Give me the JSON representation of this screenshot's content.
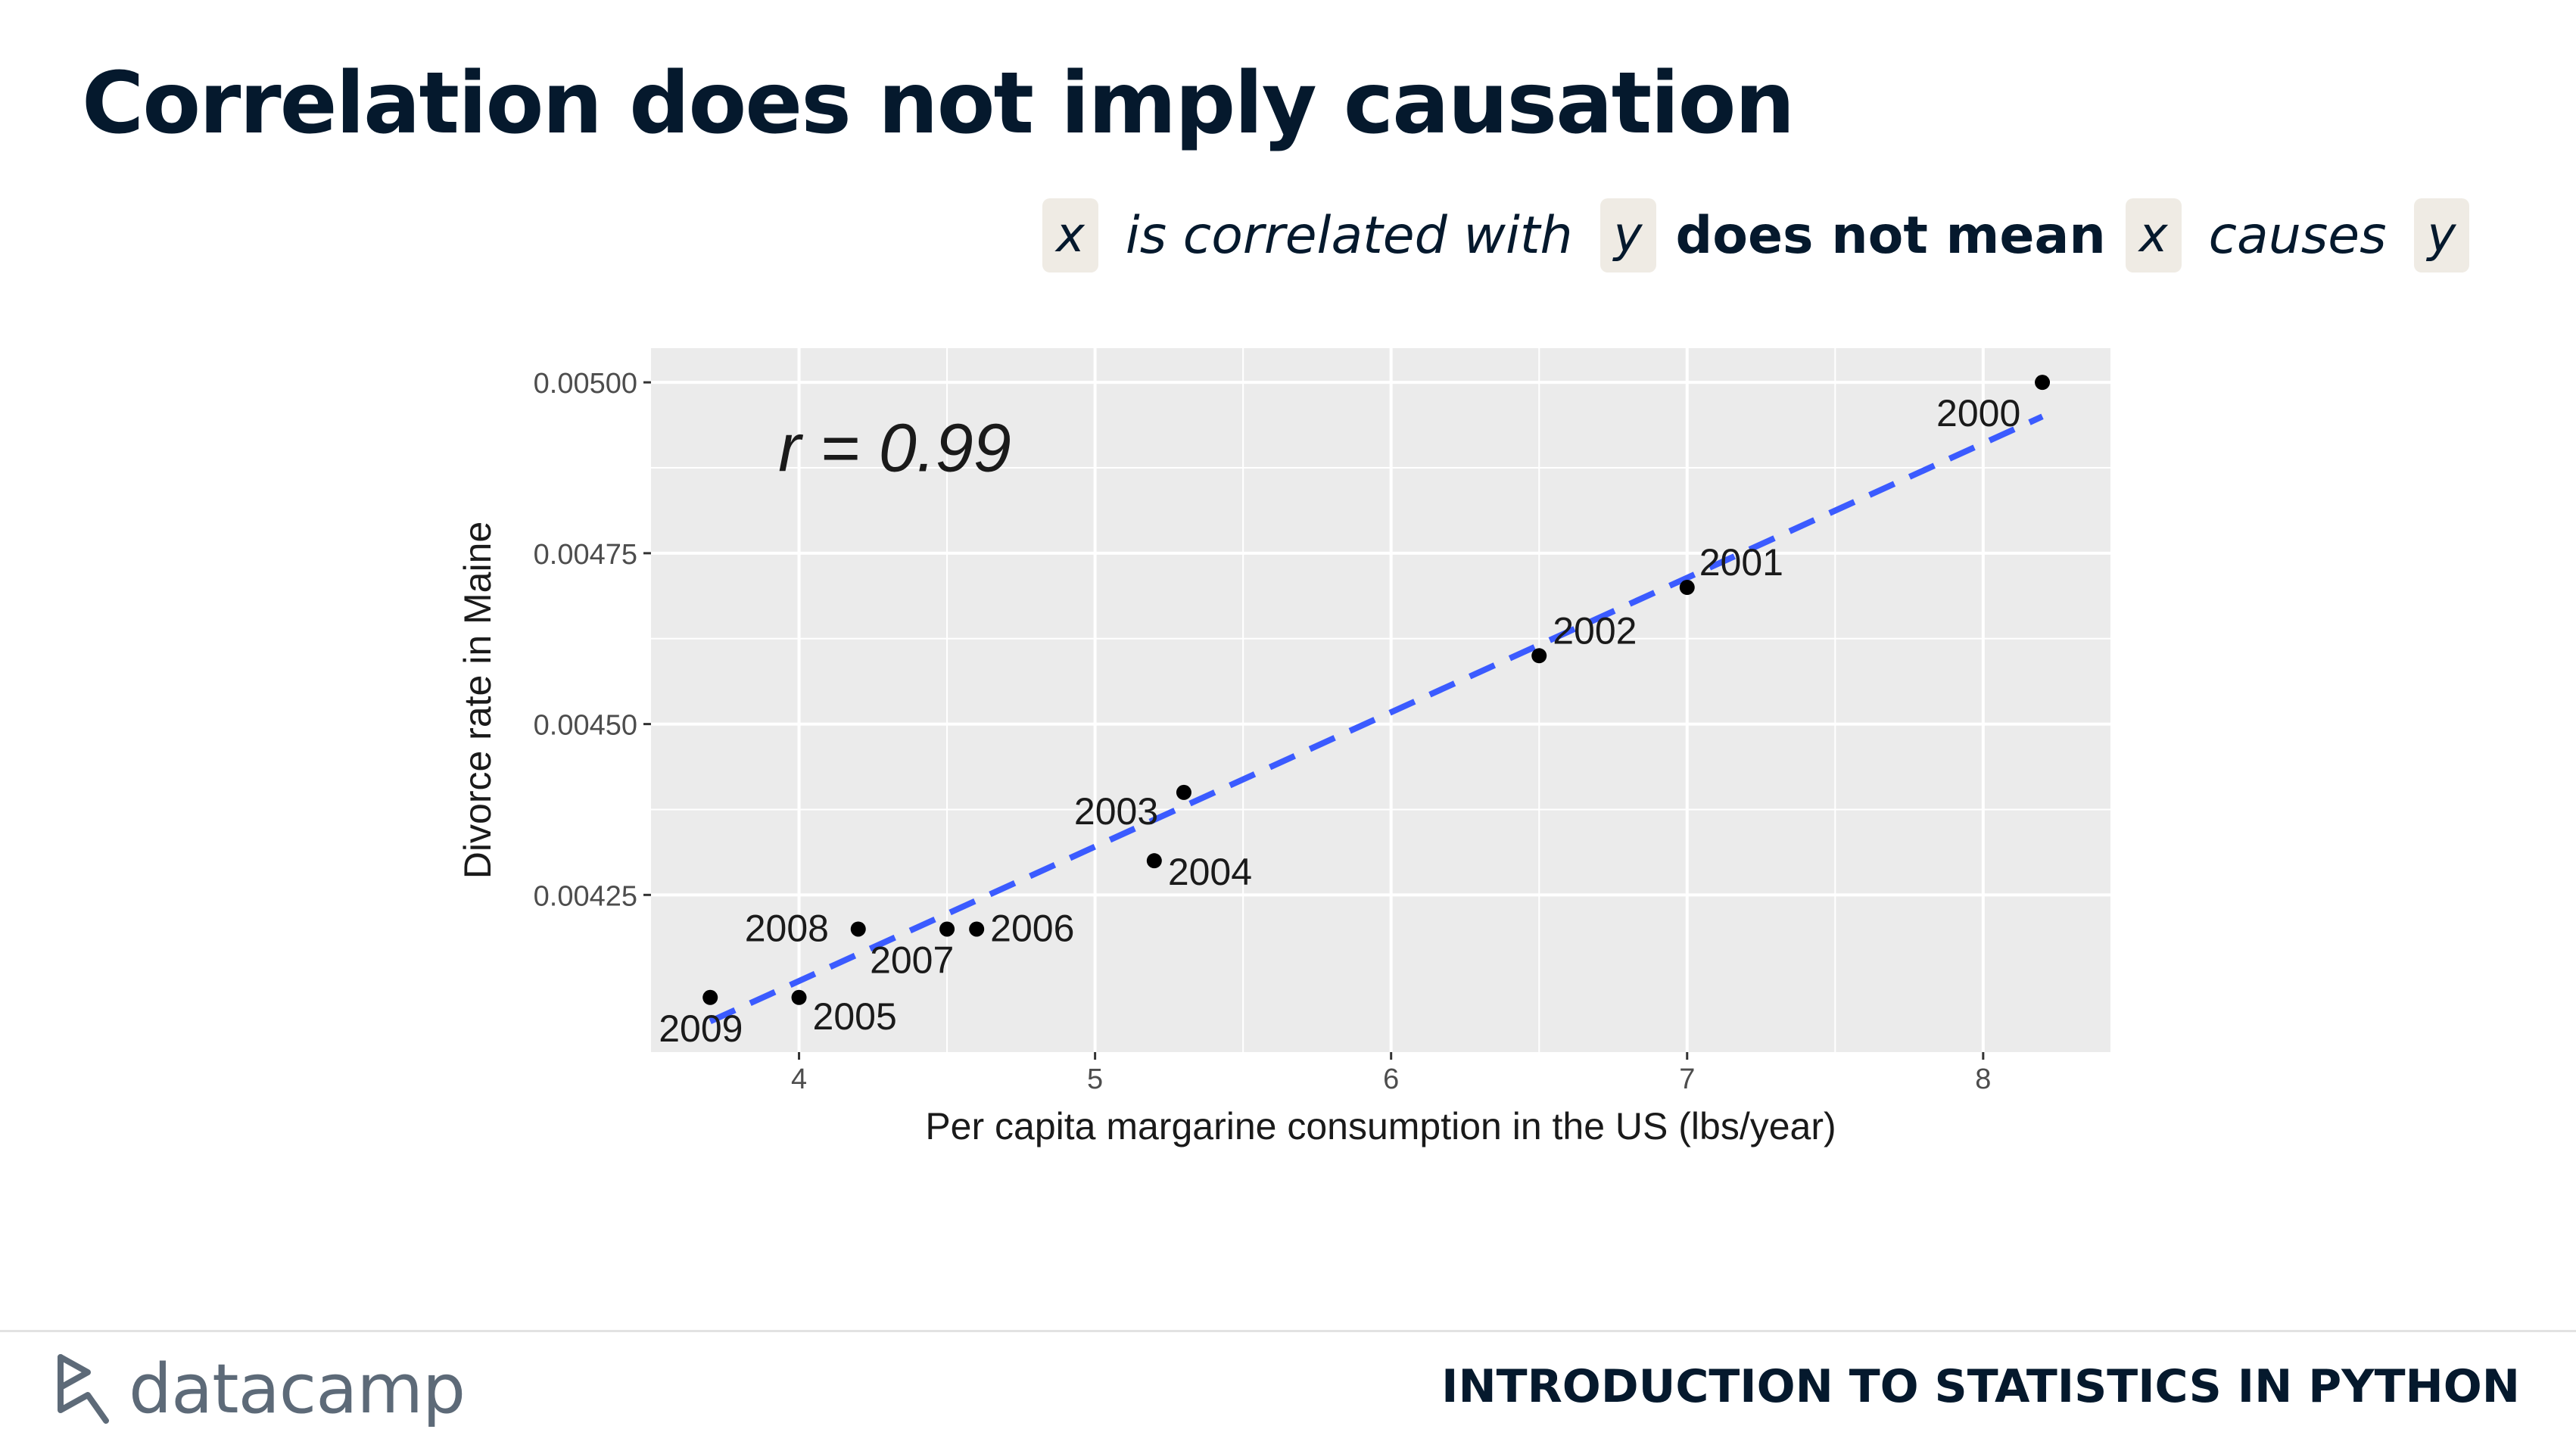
{
  "slide": {
    "title": "Correlation does not imply causation",
    "subtitle": {
      "x1": "x",
      "text1": "is correlated with",
      "y1": "y",
      "text2": "does not mean",
      "x2": "x",
      "text3": "causes",
      "y2": "y"
    }
  },
  "chart_data": {
    "type": "scatter",
    "xlabel": "Per capita margarine consumption in the US (lbs/year)",
    "ylabel": "Divorce rate in Maine",
    "annotation": "r = 0.99",
    "xlim": [
      3.5,
      8.43
    ],
    "ylim": [
      0.00402,
      0.00505
    ],
    "xticks": [
      4,
      5,
      6,
      7,
      8
    ],
    "xtick_labels": [
      "4",
      "5",
      "6",
      "7",
      "8"
    ],
    "yticks": [
      0.00425,
      0.0045,
      0.00475,
      0.005
    ],
    "ytick_labels": [
      "0.00425",
      "0.00450",
      "0.00475",
      "0.00500"
    ],
    "grid": true,
    "points": [
      {
        "label": "2000",
        "x": 8.2,
        "y": 0.005
      },
      {
        "label": "2001",
        "x": 7.0,
        "y": 0.0047
      },
      {
        "label": "2002",
        "x": 6.5,
        "y": 0.0046
      },
      {
        "label": "2003",
        "x": 5.3,
        "y": 0.0044
      },
      {
        "label": "2004",
        "x": 5.2,
        "y": 0.0043
      },
      {
        "label": "2005",
        "x": 4.0,
        "y": 0.0041
      },
      {
        "label": "2006",
        "x": 4.6,
        "y": 0.0042
      },
      {
        "label": "2007",
        "x": 4.5,
        "y": 0.0042
      },
      {
        "label": "2008",
        "x": 4.2,
        "y": 0.0042
      },
      {
        "label": "2009",
        "x": 3.7,
        "y": 0.0041
      }
    ],
    "fit_line": {
      "x": [
        3.7,
        8.2
      ],
      "y": [
        0.004065,
        0.00495
      ]
    },
    "colors": {
      "panel": "#ebebeb",
      "grid": "#ffffff",
      "points": "#000000",
      "fit_line": "#3b5bff"
    }
  },
  "footer": {
    "logo_text": "datacamp",
    "course": "INTRODUCTION TO STATISTICS IN PYTHON"
  }
}
